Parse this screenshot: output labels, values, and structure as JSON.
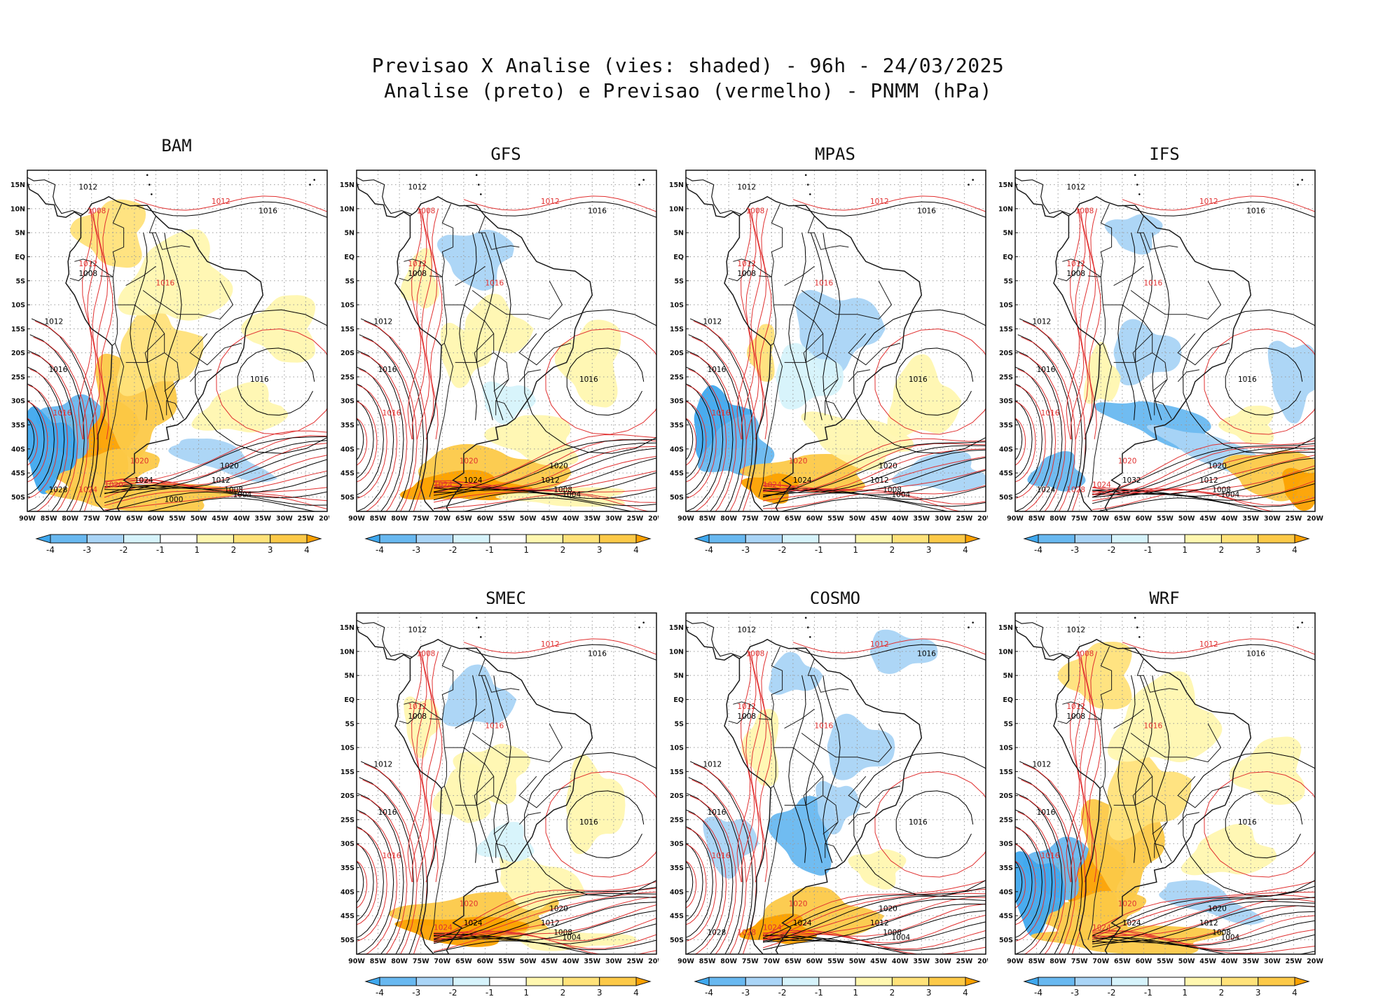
{
  "title": {
    "line1": "Previsao X Analise (vies: shaded) - 96h - 24/03/2025",
    "line2": "Analise (preto) e Previsao (vermelho) - PNMM (hPa)"
  },
  "lat_labels": [
    "15N",
    "10N",
    "5N",
    "EQ",
    "5S",
    "10S",
    "15S",
    "20S",
    "25S",
    "30S",
    "35S",
    "40S",
    "45S",
    "50S"
  ],
  "lon_labels": [
    "90W",
    "85W",
    "80W",
    "75W",
    "70W",
    "65W",
    "60W",
    "55W",
    "50W",
    "45W",
    "40W",
    "35W",
    "30W",
    "25W",
    "20W"
  ],
  "colorbar": {
    "labels": [
      "-4",
      "-3",
      "-2",
      "-1",
      "1",
      "2",
      "3",
      "4"
    ],
    "colors": [
      "#3fa8ee",
      "#68b8f0",
      "#a9d4f6",
      "#d6f3fb",
      "#ffffff",
      "#fff7b0",
      "#ffe27a",
      "#fcc948",
      "#fca100"
    ]
  },
  "colors": {
    "analysis": "#000000",
    "forecast": "#e03030",
    "coast": "#1a1a1a"
  },
  "panels": [
    {
      "name": "BAM",
      "title": "BAM",
      "bias": "warm-strong",
      "labels_black": [
        "1012",
        "1016",
        "1008",
        "1012",
        "1016",
        "1016",
        "1020",
        "1012",
        "1008",
        "1004",
        "1024",
        "1028",
        "1000"
      ],
      "labels_red": [
        "1012",
        "1016",
        "1008",
        "1012",
        "1016",
        "1020",
        "1020",
        "1024"
      ]
    },
    {
      "name": "GFS",
      "title": "GFS",
      "bias": "warm-south",
      "labels_black": [
        "1012",
        "1016",
        "1008",
        "1012",
        "1016",
        "1016",
        "1020",
        "1012",
        "1008",
        "1004",
        "1024"
      ],
      "labels_red": [
        "1012",
        "1016",
        "1008",
        "1012",
        "1016",
        "1020",
        "1024"
      ]
    },
    {
      "name": "MPAS",
      "title": "MPAS",
      "bias": "mixed",
      "labels_black": [
        "1012",
        "1016",
        "1008",
        "1012",
        "1016",
        "1016",
        "1020",
        "1012",
        "1008",
        "1004",
        "1024"
      ],
      "labels_red": [
        "1012",
        "1016",
        "1008",
        "1012",
        "1016",
        "1020",
        "1024"
      ]
    },
    {
      "name": "IFS",
      "title": "IFS",
      "bias": "cool-band",
      "labels_black": [
        "1012",
        "1016",
        "1008",
        "1012",
        "1016",
        "1016",
        "1020",
        "1012",
        "1008",
        "1004",
        "1032",
        "1024"
      ],
      "labels_red": [
        "1012",
        "1016",
        "1008",
        "1012",
        "1016",
        "1020",
        "1024",
        "1028"
      ]
    },
    {
      "name": "SMEC",
      "title": "SMEC",
      "bias": "warm-south",
      "labels_black": [
        "1012",
        "1016",
        "1008",
        "1012",
        "1016",
        "1016",
        "1020",
        "1012",
        "1008",
        "1004",
        "1024"
      ],
      "labels_red": [
        "1012",
        "1016",
        "1008",
        "1012",
        "1016",
        "1020",
        "1024"
      ]
    },
    {
      "name": "COSMO",
      "title": "COSMO",
      "bias": "cool-interior",
      "labels_black": [
        "1012",
        "1016",
        "1008",
        "1012",
        "1016",
        "1016",
        "1020",
        "1012",
        "1008",
        "1004",
        "1024",
        "1028"
      ],
      "labels_red": [
        "1012",
        "1016",
        "1008",
        "1012",
        "1016",
        "1020",
        "1024",
        "1028"
      ]
    },
    {
      "name": "WRF",
      "title": "WRF",
      "bias": "warm-strong",
      "labels_black": [
        "1012",
        "1016",
        "1008",
        "1012",
        "1016",
        "1016",
        "1020",
        "1012",
        "1008",
        "1004",
        "1024"
      ],
      "labels_red": [
        "1012",
        "1016",
        "1008",
        "1012",
        "1016",
        "1020",
        "1024"
      ]
    }
  ]
}
